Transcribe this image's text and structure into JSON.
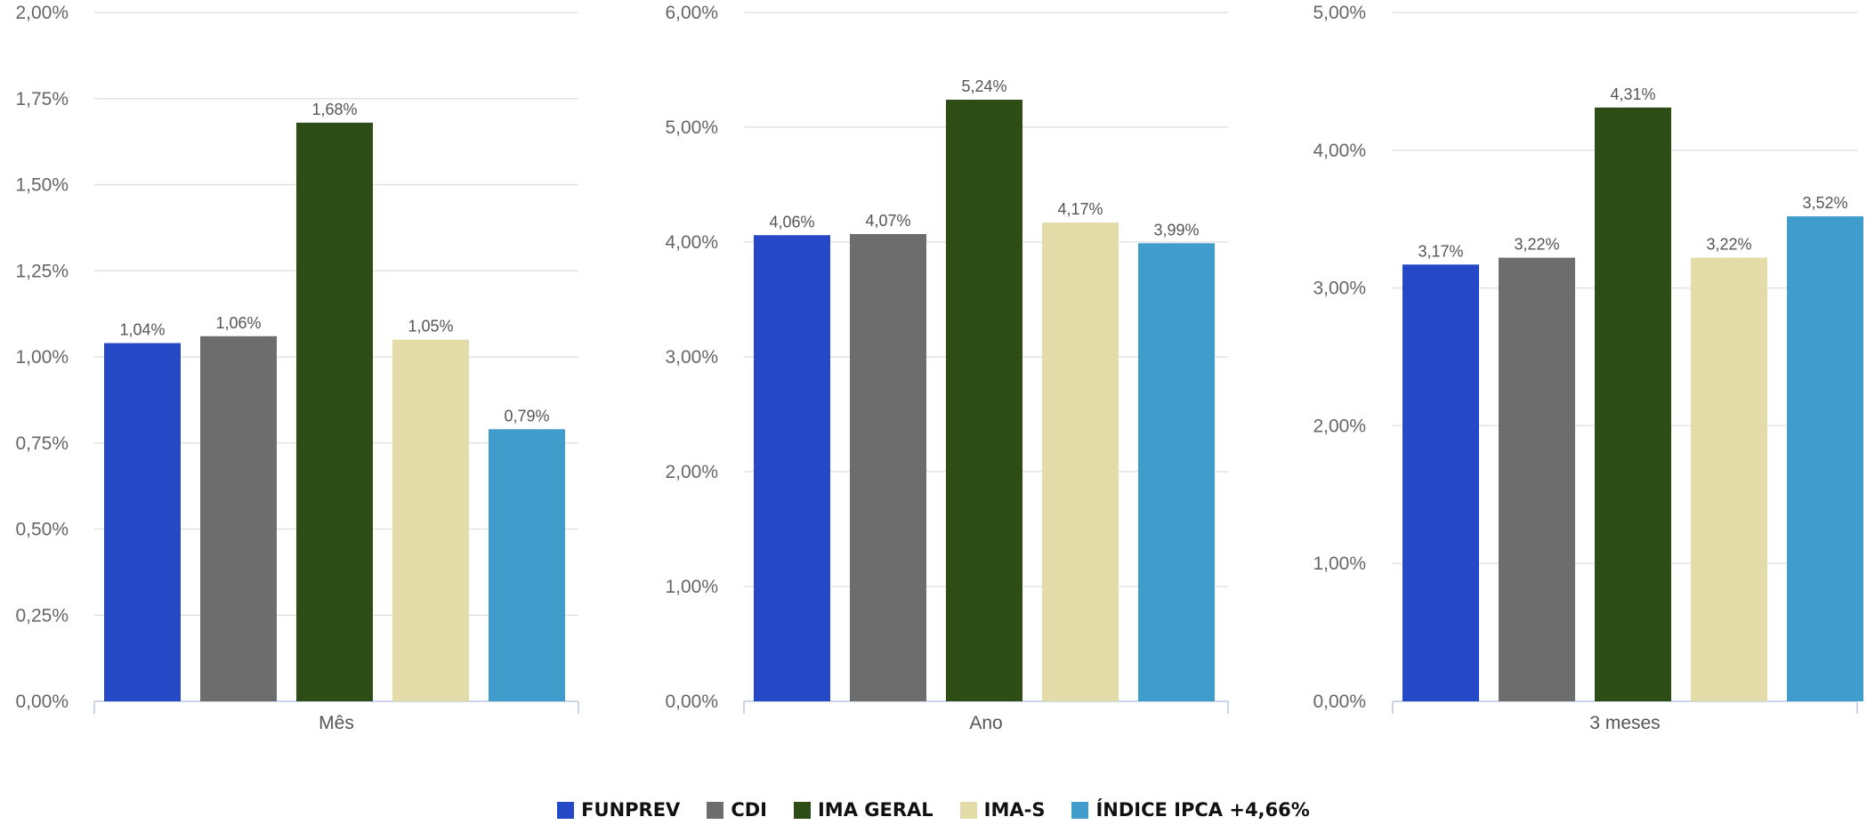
{
  "chart_data": [
    {
      "type": "bar",
      "xlabel": "Mês",
      "categories": [
        "FUNPREV",
        "CDI",
        "IMA GERAL",
        "IMA-S",
        "ÍNDICE IPCA +4,66%"
      ],
      "values": [
        1.04,
        1.06,
        1.68,
        1.05,
        0.79
      ],
      "value_labels": [
        "1,04%",
        "1,06%",
        "1,68%",
        "1,05%",
        "0,79%"
      ],
      "ylim": [
        0,
        2
      ],
      "yticks": [
        0,
        0.25,
        0.5,
        0.75,
        1,
        1.25,
        1.5,
        1.75,
        2
      ],
      "ytick_labels": [
        "0,00%",
        "0,25%",
        "0,50%",
        "0,75%",
        "1,00%",
        "1,25%",
        "1,50%",
        "1,75%",
        "2,00%"
      ],
      "grid": true
    },
    {
      "type": "bar",
      "xlabel": "Ano",
      "categories": [
        "FUNPREV",
        "CDI",
        "IMA GERAL",
        "IMA-S",
        "ÍNDICE IPCA +4,66%"
      ],
      "values": [
        4.06,
        4.07,
        5.24,
        4.17,
        3.99
      ],
      "value_labels": [
        "4,06%",
        "4,07%",
        "5,24%",
        "4,17%",
        "3,99%"
      ],
      "ylim": [
        0,
        6
      ],
      "yticks": [
        0,
        1,
        2,
        3,
        4,
        5,
        6
      ],
      "ytick_labels": [
        "0,00%",
        "1,00%",
        "2,00%",
        "3,00%",
        "4,00%",
        "5,00%",
        "6,00%"
      ],
      "grid": true
    },
    {
      "type": "bar",
      "xlabel": "3 meses",
      "categories": [
        "FUNPREV",
        "CDI",
        "IMA GERAL",
        "IMA-S",
        "ÍNDICE IPCA +4,66%"
      ],
      "values": [
        3.17,
        3.22,
        4.31,
        3.22,
        3.52
      ],
      "value_labels": [
        "3,17%",
        "3,22%",
        "4,31%",
        "3,22%",
        "3,52%"
      ],
      "ylim": [
        0,
        5
      ],
      "yticks": [
        0,
        1,
        2,
        3,
        4,
        5
      ],
      "ytick_labels": [
        "0,00%",
        "1,00%",
        "2,00%",
        "3,00%",
        "4,00%",
        "5,00%"
      ],
      "grid": true
    }
  ],
  "legend": {
    "placement": "bottom-center",
    "items": [
      {
        "label": "FUNPREV",
        "color": "#2549c6"
      },
      {
        "label": "CDI",
        "color": "#6d6d6d"
      },
      {
        "label": "IMA GERAL",
        "color": "#2e4c15"
      },
      {
        "label": "IMA-S",
        "color": "#e3dca8"
      },
      {
        "label": "ÍNDICE IPCA +4,66%",
        "color": "#409dcb"
      }
    ]
  }
}
